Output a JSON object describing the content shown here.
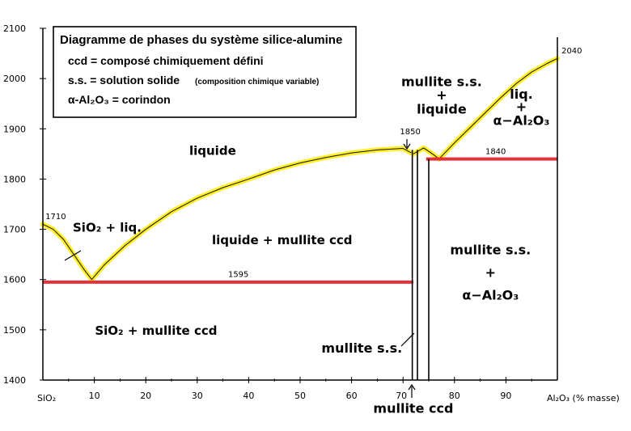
{
  "chart_data": {
    "type": "line",
    "title": "Diagramme de phases du système silice-alumine",
    "legend": [
      "ccd = composé chimiquement défini",
      "s.s. = solution solide",
      "(composition chimique variable)",
      "α-Al₂O₃ = corindon"
    ],
    "xlabel_left": "SiO₂",
    "xlabel_right": "Al₂O₃ (% masse)",
    "xlim": [
      0,
      100
    ],
    "ylim": [
      1400,
      2100
    ],
    "xticks": [
      10,
      20,
      30,
      40,
      50,
      60,
      70,
      80,
      90
    ],
    "yticks": [
      1400,
      1500,
      1600,
      1700,
      1800,
      1900,
      2000,
      2100
    ],
    "series": [
      {
        "kind": "liquidus",
        "color": "#ffee22",
        "x": [
          0,
          2,
          4,
          6,
          8,
          9.5,
          12,
          16,
          20,
          25,
          30,
          35,
          40,
          45,
          50,
          55,
          60,
          65,
          70,
          72
        ],
        "y": [
          1710,
          1700,
          1680,
          1650,
          1620,
          1600,
          1630,
          1668,
          1700,
          1735,
          1762,
          1783,
          1800,
          1818,
          1832,
          1843,
          1852,
          1858,
          1861,
          1850
        ]
      },
      {
        "kind": "liquidus",
        "color": "#ffee22",
        "x": [
          72,
          74,
          76,
          77,
          80,
          83,
          86,
          89,
          92,
          95,
          98,
          100
        ],
        "y": [
          1850,
          1862,
          1848,
          1840,
          1872,
          1902,
          1932,
          1962,
          1990,
          2013,
          2030,
          2040
        ]
      },
      {
        "kind": "eutectic",
        "color": "#e8303a",
        "x": [
          0,
          72
        ],
        "y": [
          1595,
          1595
        ]
      },
      {
        "kind": "eutectic",
        "color": "#e8303a",
        "x": [
          74.5,
          100
        ],
        "y": [
          1840,
          1840
        ]
      }
    ],
    "vertical_lines": [
      {
        "x": 71.8,
        "y_from": 1400,
        "y_to": 1858
      },
      {
        "x": 72.8,
        "y_from": 1400,
        "y_to": 1858
      },
      {
        "x": 75.0,
        "y_from": 1400,
        "y_to": 1840
      }
    ],
    "point_labels": [
      {
        "text": "1710",
        "x": 0.5,
        "y": 1720
      },
      {
        "text": "1595",
        "x": 36,
        "y": 1605
      },
      {
        "text": "1850",
        "x": 69.4,
        "y": 1889
      },
      {
        "text": "1840",
        "x": 86,
        "y": 1850
      },
      {
        "text": "2040",
        "x": 100.8,
        "y": 2050
      }
    ],
    "regions": [
      {
        "text": "liquide",
        "x": 33,
        "y": 1848
      },
      {
        "text": "SiO₂ + liq.",
        "x": 12.5,
        "y": 1695
      },
      {
        "text": "liquide + mullite ccd",
        "x": 46.5,
        "y": 1670
      },
      {
        "text": "SiO₂ + mullite ccd",
        "x": 22,
        "y": 1490
      },
      {
        "text": "mullite s.s.",
        "x": 77.5,
        "y": 1985,
        "size": "lg"
      },
      {
        "text": "+",
        "x": 77.5,
        "y": 1958,
        "size": "lg"
      },
      {
        "text": "liquide",
        "x": 77.5,
        "y": 1930,
        "size": "lg"
      },
      {
        "text": "liq.",
        "x": 93,
        "y": 1960,
        "size": "lg"
      },
      {
        "text": "+",
        "x": 93,
        "y": 1935,
        "size": "lg"
      },
      {
        "text": "α−Al₂O₃",
        "x": 93,
        "y": 1908,
        "size": "lg"
      },
      {
        "text": "mullite s.s.",
        "x": 87,
        "y": 1650,
        "size": "lg"
      },
      {
        "text": "+",
        "x": 87,
        "y": 1605,
        "size": "lg"
      },
      {
        "text": "α−Al₂O₃",
        "x": 87,
        "y": 1560,
        "size": "lg"
      },
      {
        "text": "mullite s.s.",
        "x": 62,
        "y": 1455,
        "size": "lg"
      },
      {
        "text": "mullite ccd",
        "x": 72,
        "y": 1335,
        "size": "lg"
      }
    ]
  }
}
